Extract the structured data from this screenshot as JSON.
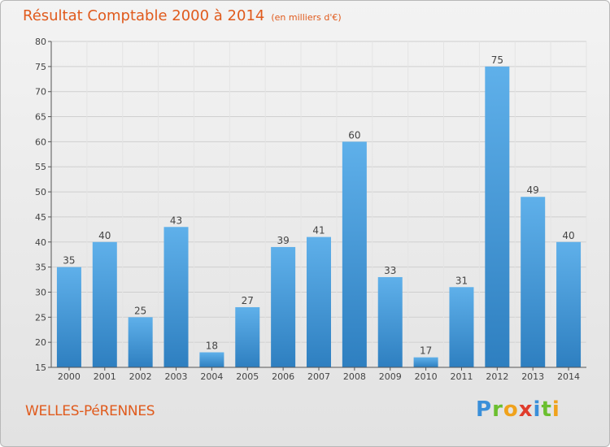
{
  "title": {
    "main": "Résultat Comptable 2000 à 2014",
    "unit": "(en milliers d'€)"
  },
  "location": "WELLES-PéRENNES",
  "brand": {
    "letters": [
      "P",
      "r",
      "o",
      "x",
      "i",
      "t",
      "i"
    ],
    "colors": [
      "#3a8fd9",
      "#6bbf2f",
      "#f0a21c",
      "#e03c2c",
      "#3a8fd9",
      "#6bbf2f",
      "#f0a21c"
    ]
  },
  "colors": {
    "title": "#e05a1c",
    "bar_light": "#5fb0ea",
    "bar_dark": "#2e7fc0",
    "grid": "#cfcfcf"
  },
  "chart_data": {
    "type": "bar",
    "title": "Résultat Comptable 2000 à 2014",
    "xlabel": "",
    "ylabel": "",
    "categories": [
      "2000",
      "2001",
      "2002",
      "2003",
      "2004",
      "2005",
      "2006",
      "2007",
      "2008",
      "2009",
      "2010",
      "2011",
      "2012",
      "2013",
      "2014"
    ],
    "values": [
      35,
      40,
      25,
      43,
      18,
      27,
      39,
      41,
      60,
      33,
      17,
      31,
      75,
      49,
      40
    ],
    "ylim": [
      15,
      80
    ],
    "yticks": [
      15,
      20,
      25,
      30,
      35,
      40,
      45,
      50,
      55,
      60,
      65,
      70,
      75,
      80
    ],
    "grid": true
  }
}
